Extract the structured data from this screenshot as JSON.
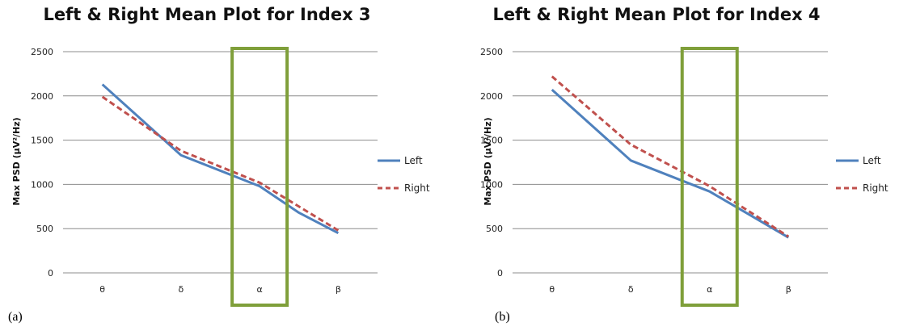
{
  "panels": {
    "a": {
      "label": "(a)"
    },
    "b": {
      "label": "(b)"
    }
  },
  "colors": {
    "left": "#4F81BD",
    "right": "#C0504D",
    "highlight": "#7F9F3A",
    "grid": "#8C8C8C"
  },
  "chart_data": [
    {
      "type": "line",
      "title": "Left & Right Mean Plot for Index 3",
      "ylabel": "Max PSD (µV²/Hz)",
      "xlabel": "",
      "categories": [
        "θ",
        "δ",
        "α",
        "β"
      ],
      "ylim": [
        0,
        2500
      ],
      "yticks": [
        0,
        500,
        1000,
        1500,
        2000,
        2500
      ],
      "grid": true,
      "legend_position": "right",
      "highlight_category": "α",
      "series": [
        {
          "name": "Left",
          "style": "solid",
          "x": [
            0,
            1,
            2,
            2.5,
            3
          ],
          "values": [
            2130,
            1330,
            980,
            680,
            450
          ]
        },
        {
          "name": "Right",
          "style": "dashed",
          "x": [
            0,
            1,
            2,
            3
          ],
          "values": [
            1990,
            1380,
            1020,
            480
          ]
        }
      ]
    },
    {
      "type": "line",
      "title": "Left & Right Mean Plot for Index 4",
      "ylabel": "Max PSD (µV²/Hz)",
      "xlabel": "",
      "categories": [
        "θ",
        "δ",
        "α",
        "β"
      ],
      "ylim": [
        0,
        2500
      ],
      "yticks": [
        0,
        500,
        1000,
        1500,
        2000,
        2500
      ],
      "grid": true,
      "legend_position": "right",
      "highlight_category": "α",
      "series": [
        {
          "name": "Left",
          "style": "solid",
          "x": [
            0,
            1,
            2,
            3
          ],
          "values": [
            2070,
            1270,
            920,
            400
          ]
        },
        {
          "name": "Right",
          "style": "dashed",
          "x": [
            0,
            1,
            2,
            3
          ],
          "values": [
            2220,
            1450,
            980,
            410
          ]
        }
      ]
    }
  ]
}
